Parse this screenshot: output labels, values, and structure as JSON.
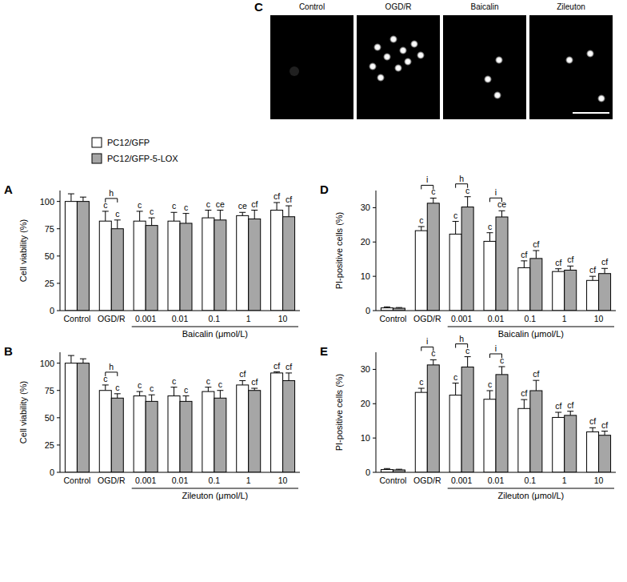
{
  "image_panel": {
    "title": "C",
    "labels": [
      "Control",
      "OGD/R",
      "Baicalin",
      "Zileuton"
    ]
  },
  "chart_data": [
    {
      "type": "bar",
      "title": "A",
      "ylabel": "Cell viability (%)",
      "xlabel": "Baicalin (μmol/L)",
      "categories": [
        "Control",
        "OGD/R",
        "0.001",
        "0.01",
        "0.1",
        "1",
        "10"
      ],
      "ylim": [
        0,
        110
      ],
      "yticks": [
        0,
        25,
        50,
        75,
        100
      ],
      "grid": false,
      "legend": "top-left",
      "comparisons": [
        null,
        "h",
        null,
        null,
        null,
        null,
        null
      ],
      "series": [
        {
          "name": "PC12/GFP",
          "color": "#ffffff",
          "values": [
            100,
            82,
            82,
            82,
            85,
            87,
            92
          ],
          "errors": [
            7,
            9,
            9,
            8,
            7,
            3,
            7
          ],
          "letters": [
            null,
            "c",
            "c",
            "c",
            "c",
            "ce",
            "cf"
          ]
        },
        {
          "name": "PC12/GFP-5-LOX",
          "color": "#a6a6a6",
          "values": [
            100,
            75,
            78,
            80,
            83,
            84,
            86
          ],
          "errors": [
            4,
            8,
            7,
            9,
            9,
            8,
            10
          ],
          "letters": [
            null,
            "c",
            "c",
            "c",
            "ce",
            "cf",
            "cf"
          ]
        }
      ]
    },
    {
      "type": "bar",
      "title": "B",
      "ylabel": "Cell viability (%)",
      "xlabel": "Zileuton (μmol/L)",
      "categories": [
        "Control",
        "OGD/R",
        "0.001",
        "0.01",
        "0.1",
        "1",
        "10"
      ],
      "ylim": [
        0,
        110
      ],
      "yticks": [
        0,
        25,
        50,
        75,
        100
      ],
      "grid": false,
      "comparisons": [
        null,
        "h",
        null,
        null,
        null,
        null,
        null
      ],
      "series": [
        {
          "color": "#ffffff",
          "values": [
            100,
            75,
            70,
            70,
            74,
            80,
            91
          ],
          "errors": [
            7,
            5,
            4,
            8,
            4,
            4,
            1
          ],
          "letters": [
            null,
            "c",
            "c",
            "c",
            "c",
            "cf",
            "cf"
          ]
        },
        {
          "color": "#a6a6a6",
          "values": [
            100,
            68,
            65,
            65,
            68,
            75,
            84
          ],
          "errors": [
            4,
            4,
            6,
            5,
            7,
            2,
            7
          ],
          "letters": [
            null,
            "c",
            "c",
            "c",
            "c",
            "cf",
            "cf"
          ]
        }
      ]
    },
    {
      "type": "bar",
      "title": "D",
      "ylabel": "PI-positive cells (%)",
      "xlabel": "Baicalin (μmol/L)",
      "categories": [
        "Control",
        "OGD/R",
        "0.001",
        "0.01",
        "0.1",
        "1",
        "10"
      ],
      "ylim": [
        0,
        35
      ],
      "yticks": [
        0,
        10,
        20,
        30
      ],
      "grid": false,
      "comparisons": [
        null,
        "i",
        "h",
        "i",
        null,
        null,
        null
      ],
      "series": [
        {
          "color": "#ffffff",
          "values": [
            0.8,
            23.3,
            22.3,
            20.2,
            12.5,
            11.4,
            8.8
          ],
          "errors": [
            0.3,
            1.2,
            3.7,
            2.5,
            2,
            0.8,
            1.2
          ],
          "letters": [
            null,
            "c",
            "c",
            "c",
            "cf",
            "cf",
            "cf"
          ]
        },
        {
          "color": "#a6a6a6",
          "values": [
            0.7,
            31.3,
            30.2,
            27.3,
            15.2,
            11.8,
            10.8
          ],
          "errors": [
            0.2,
            1.5,
            3,
            1.8,
            2.3,
            1.2,
            1.5
          ],
          "letters": [
            null,
            "c",
            "c",
            "ce",
            "cf",
            "cf",
            "cf"
          ]
        }
      ]
    },
    {
      "type": "bar",
      "title": "E",
      "ylabel": "PI-positive cells (%)",
      "xlabel": "Zileuton (μmol/L)",
      "categories": [
        "Control",
        "OGD/R",
        "0.001",
        "0.01",
        "0.1",
        "1",
        "10"
      ],
      "ylim": [
        0,
        35
      ],
      "yticks": [
        0,
        10,
        20,
        30
      ],
      "grid": false,
      "comparisons": [
        null,
        "i",
        "h",
        "i",
        null,
        null,
        null
      ],
      "series": [
        {
          "color": "#ffffff",
          "values": [
            0.8,
            23.3,
            22.5,
            21.3,
            18.6,
            16,
            11.8
          ],
          "errors": [
            0.3,
            1.2,
            3.5,
            2.5,
            2.6,
            1.5,
            1.2
          ],
          "letters": [
            null,
            "c",
            "c",
            "c",
            "cf",
            "cf",
            "cf"
          ]
        },
        {
          "color": "#a6a6a6",
          "values": [
            0.7,
            31.3,
            30.7,
            28.5,
            23.8,
            16.6,
            10.8
          ],
          "errors": [
            0.2,
            1.5,
            3,
            2.3,
            3,
            1.2,
            1.2
          ],
          "letters": [
            null,
            "c",
            "c",
            "c",
            "cf",
            "cf",
            "cf"
          ]
        }
      ]
    }
  ]
}
